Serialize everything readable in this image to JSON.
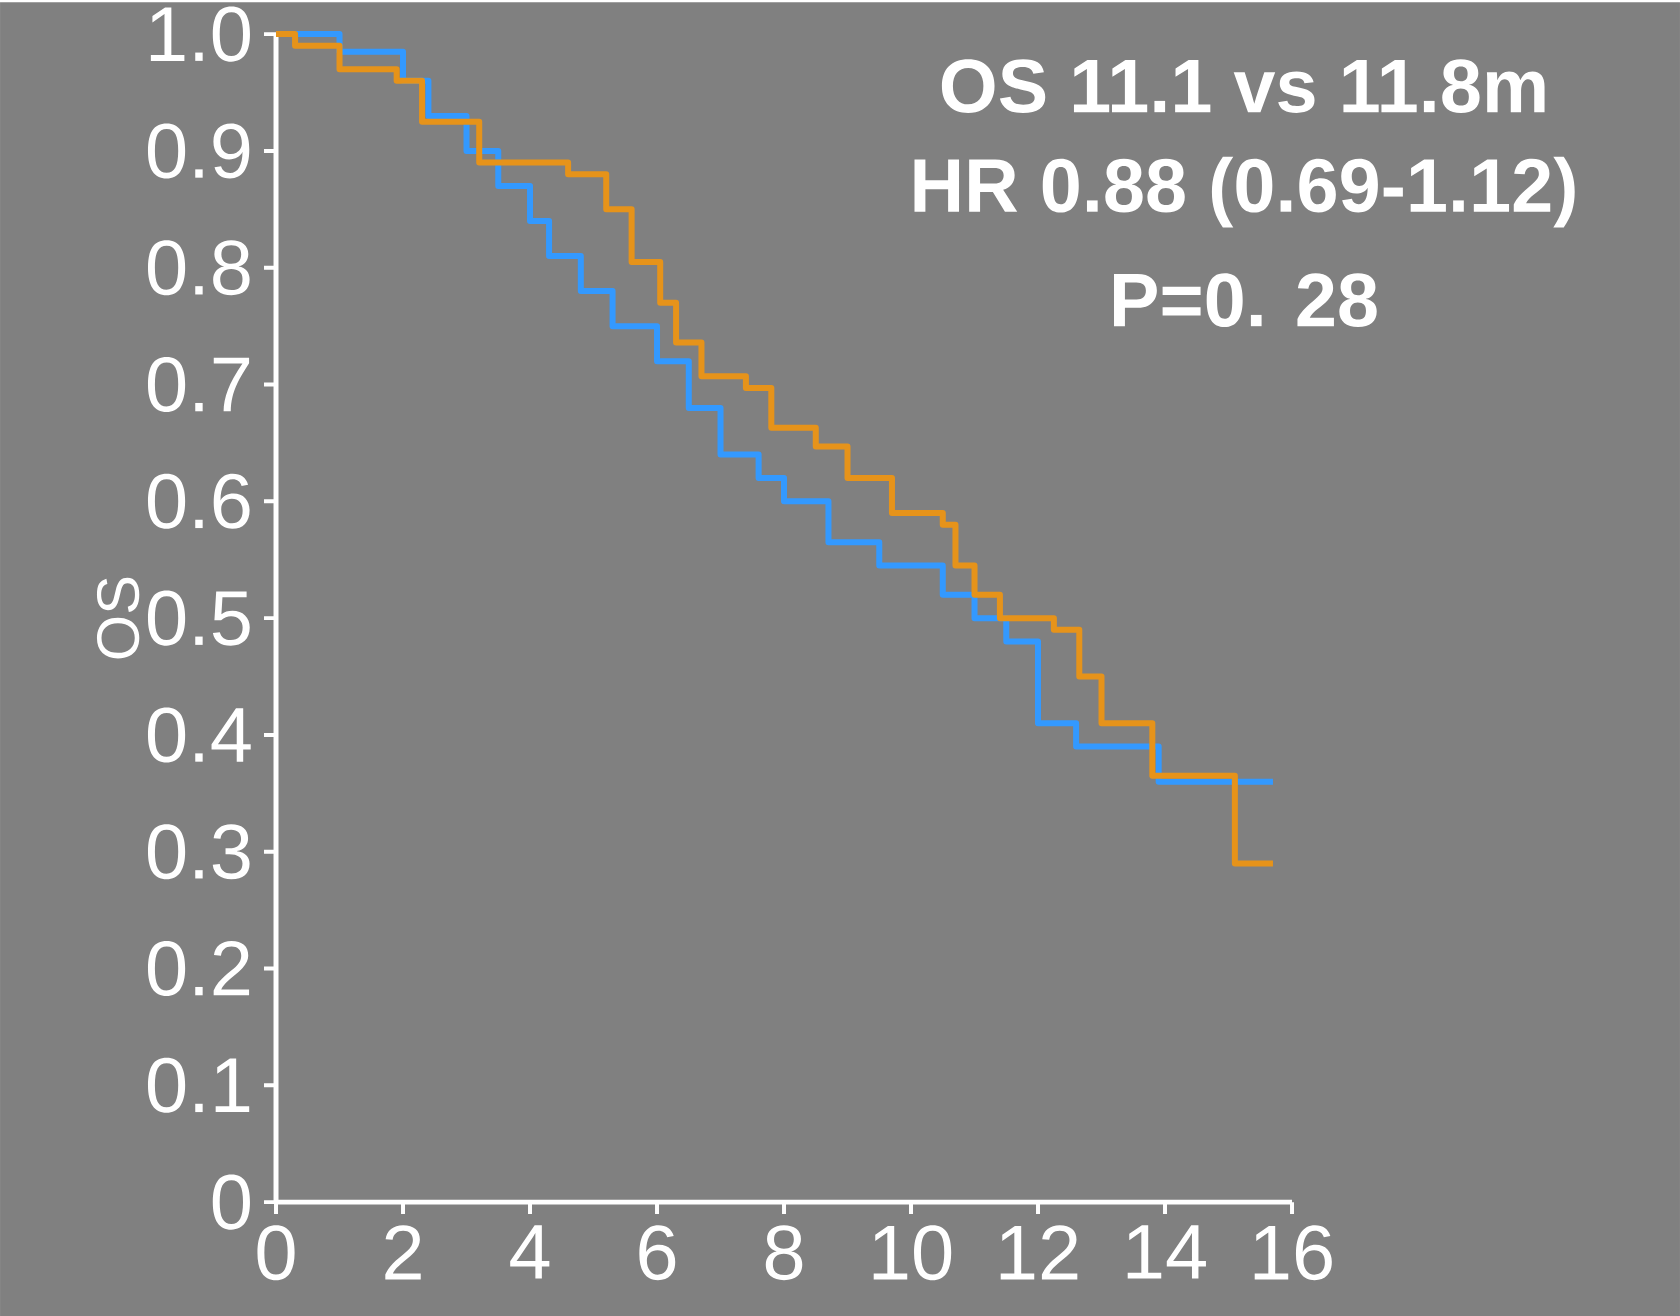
{
  "chart_data": {
    "type": "step",
    "ylabel": "OS",
    "annotations": [
      "OS 11.1 vs 11.8m",
      "HR 0.88 (0.69-1.12)",
      "P=0. 28"
    ],
    "xlim": [
      0,
      16
    ],
    "ylim": [
      0,
      1
    ],
    "xticks": [
      0,
      2,
      4,
      6,
      8,
      10,
      12,
      14,
      16
    ],
    "yticks": [
      {
        "value": 0,
        "label": "0"
      },
      {
        "value": 0.1,
        "label": "0.1"
      },
      {
        "value": 0.2,
        "label": "0.2"
      },
      {
        "value": 0.3,
        "label": "0.3"
      },
      {
        "value": 0.4,
        "label": "0.4"
      },
      {
        "value": 0.5,
        "label": "0.5"
      },
      {
        "value": 0.6,
        "label": "0.6"
      },
      {
        "value": 0.7,
        "label": "0.7"
      },
      {
        "value": 0.8,
        "label": "0.8"
      },
      {
        "value": 0.9,
        "label": "0.9"
      },
      {
        "value": 1,
        "label": "1.0"
      }
    ],
    "grid": false,
    "series": [
      {
        "color": "#3399ff",
        "x": [
          0,
          1.0,
          2.0,
          2.4,
          3.0,
          3.5,
          4.0,
          4.3,
          4.8,
          5.3,
          6.0,
          6.5,
          7.0,
          7.6,
          8.0,
          8.7,
          9.5,
          10.5,
          11.0,
          11.5,
          12.0,
          12.6,
          13.9,
          15.7
        ],
        "values": [
          1.0,
          0.985,
          0.96,
          0.93,
          0.9,
          0.87,
          0.84,
          0.81,
          0.78,
          0.75,
          0.72,
          0.68,
          0.64,
          0.62,
          0.6,
          0.565,
          0.545,
          0.52,
          0.5,
          0.48,
          0.41,
          0.39,
          0.36,
          0.36
        ]
      },
      {
        "color": "#e6931a",
        "x": [
          0,
          0.3,
          1.0,
          1.9,
          2.3,
          3.2,
          4.6,
          5.2,
          5.6,
          6.05,
          6.3,
          6.7,
          7.4,
          7.8,
          8.5,
          9.0,
          9.7,
          10.5,
          10.7,
          11.0,
          11.4,
          12.25,
          12.65,
          13.0,
          13.8,
          15.1,
          15.7
        ],
        "values": [
          1.0,
          0.99,
          0.97,
          0.96,
          0.925,
          0.89,
          0.88,
          0.85,
          0.805,
          0.77,
          0.736,
          0.707,
          0.697,
          0.663,
          0.647,
          0.62,
          0.59,
          0.58,
          0.545,
          0.52,
          0.5,
          0.49,
          0.45,
          0.41,
          0.365,
          0.29,
          0.29
        ]
      }
    ]
  }
}
